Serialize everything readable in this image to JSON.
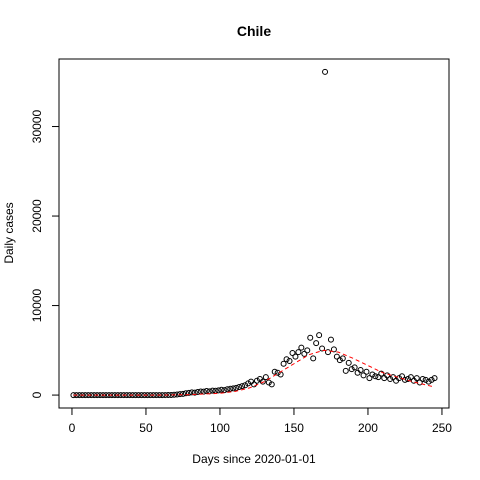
{
  "chart_data": {
    "type": "scatter",
    "title": "Chile",
    "xlabel": "Days since 2020-01-01",
    "ylabel": "Daily cases",
    "xlim": [
      -8.76,
      254.76
    ],
    "ylim": [
      -1444,
      37544
    ],
    "xticks": [
      0,
      50,
      100,
      150,
      200,
      250
    ],
    "yticks": [
      0,
      10000,
      20000,
      30000
    ],
    "points": {
      "color": "#000000",
      "x": [
        1,
        3,
        5,
        7,
        9,
        11,
        13,
        15,
        17,
        19,
        21,
        23,
        25,
        27,
        29,
        31,
        33,
        35,
        37,
        39,
        41,
        43,
        45,
        47,
        49,
        51,
        53,
        55,
        57,
        59,
        61,
        63,
        65,
        67,
        69,
        71,
        73,
        75,
        77,
        79,
        81,
        83,
        85,
        87,
        89,
        91,
        93,
        95,
        97,
        99,
        101,
        103,
        105,
        107,
        109,
        111,
        113,
        115,
        117,
        119,
        121,
        123,
        125,
        127,
        129,
        131,
        133,
        135,
        137,
        139,
        141,
        143,
        145,
        147,
        149,
        151,
        153,
        155,
        157,
        159,
        161,
        163,
        165,
        167,
        169,
        171,
        173,
        175,
        177,
        179,
        181,
        183,
        185,
        187,
        189,
        191,
        193,
        195,
        197,
        199,
        201,
        203,
        205,
        207,
        209,
        211,
        213,
        215,
        217,
        219,
        221,
        223,
        225,
        227,
        229,
        231,
        233,
        235,
        237,
        239,
        241,
        243,
        245
      ],
      "y": [
        0,
        0,
        0,
        0,
        0,
        0,
        0,
        0,
        0,
        0,
        0,
        0,
        0,
        0,
        0,
        0,
        0,
        0,
        0,
        0,
        0,
        0,
        0,
        0,
        0,
        0,
        0,
        0,
        0,
        0,
        0,
        1,
        5,
        10,
        30,
        60,
        100,
        140,
        200,
        250,
        300,
        280,
        350,
        400,
        380,
        450,
        420,
        500,
        480,
        520,
        600,
        550,
        650,
        700,
        750,
        800,
        900,
        1000,
        1100,
        1300,
        1500,
        1200,
        1600,
        1800,
        1500,
        2000,
        1400,
        1200,
        2600,
        2500,
        2300,
        3500,
        4000,
        3800,
        4700,
        4300,
        4800,
        5300,
        4600,
        5000,
        6400,
        4100,
        5800,
        6700,
        5200,
        36100,
        4800,
        6200,
        5100,
        4300,
        3900,
        4100,
        2700,
        3600,
        2900,
        3100,
        2500,
        2800,
        2200,
        2600,
        1900,
        2300,
        2100,
        2000,
        2400,
        1900,
        2200,
        1800,
        2000,
        1600,
        1900,
        2100,
        1700,
        1800,
        2000,
        1600,
        1900,
        1400,
        1800,
        1700,
        1500,
        1700,
        1900
      ]
    },
    "fit": {
      "color": "#ff0000",
      "x": [
        1,
        60,
        80,
        100,
        110,
        120,
        130,
        140,
        150,
        160,
        170,
        180,
        190,
        200,
        210,
        220,
        230,
        240,
        245
      ],
      "y": [
        0,
        0,
        50,
        200,
        400,
        800,
        1500,
        2500,
        3500,
        4500,
        5000,
        4800,
        4100,
        3300,
        2500,
        2000,
        1500,
        1100,
        900
      ]
    }
  }
}
